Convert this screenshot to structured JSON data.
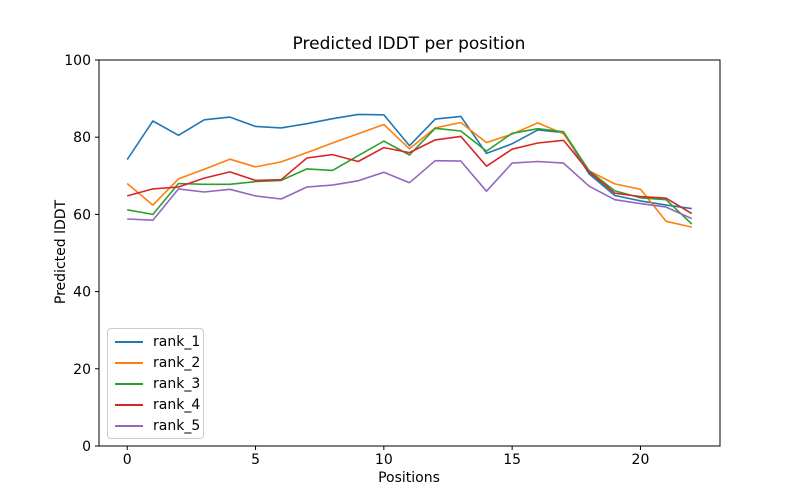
{
  "chart_data": {
    "type": "line",
    "title": "Predicted lDDT per position",
    "xlabel": "Positions",
    "ylabel": "Predicted lDDT",
    "xlim": [
      -1.1,
      23.1
    ],
    "ylim": [
      0,
      100
    ],
    "xticks": [
      0,
      5,
      10,
      15,
      20
    ],
    "yticks": [
      0,
      20,
      40,
      60,
      80,
      100
    ],
    "grid": false,
    "legend_position": "lower left",
    "x": [
      0,
      1,
      2,
      3,
      4,
      5,
      6,
      7,
      8,
      9,
      10,
      11,
      12,
      13,
      14,
      15,
      16,
      17,
      18,
      19,
      20,
      21,
      22
    ],
    "series": [
      {
        "name": "rank_1",
        "color": "#1f77b4",
        "values": [
          74.2,
          84.2,
          80.5,
          84.5,
          85.2,
          82.8,
          82.4,
          83.5,
          84.8,
          85.9,
          85.8,
          77.8,
          84.7,
          85.4,
          75.8,
          78.3,
          81.9,
          81.2,
          70.5,
          64.9,
          63.5,
          62.4,
          61.5
        ]
      },
      {
        "name": "rank_2",
        "color": "#ff7f0e",
        "values": [
          68.0,
          62.4,
          69.2,
          71.7,
          74.3,
          72.3,
          73.6,
          76.0,
          78.5,
          80.9,
          83.3,
          77.0,
          82.4,
          83.8,
          78.6,
          80.8,
          83.7,
          80.9,
          71.3,
          67.9,
          66.5,
          58.2,
          56.7
        ]
      },
      {
        "name": "rank_3",
        "color": "#2ca02c",
        "values": [
          61.2,
          60.0,
          68.0,
          67.8,
          67.8,
          68.5,
          68.8,
          71.8,
          71.4,
          75.2,
          79.0,
          75.4,
          82.3,
          81.6,
          76.4,
          81.0,
          82.2,
          81.4,
          71.3,
          66.1,
          64.3,
          63.8,
          57.5
        ]
      },
      {
        "name": "rank_4",
        "color": "#d62728",
        "values": [
          64.8,
          66.6,
          67.1,
          69.4,
          71.0,
          68.8,
          69.0,
          74.6,
          75.5,
          73.7,
          77.3,
          76.0,
          79.3,
          80.2,
          72.5,
          76.9,
          78.5,
          79.2,
          71.0,
          65.5,
          64.6,
          64.2,
          60.2
        ]
      },
      {
        "name": "rank_5",
        "color": "#9467bd",
        "values": [
          58.8,
          58.5,
          66.6,
          65.8,
          66.5,
          64.8,
          64.0,
          67.1,
          67.6,
          68.7,
          70.9,
          68.2,
          73.9,
          73.8,
          66.0,
          73.3,
          73.7,
          73.3,
          67.3,
          63.8,
          62.8,
          61.9,
          58.9
        ]
      }
    ]
  }
}
